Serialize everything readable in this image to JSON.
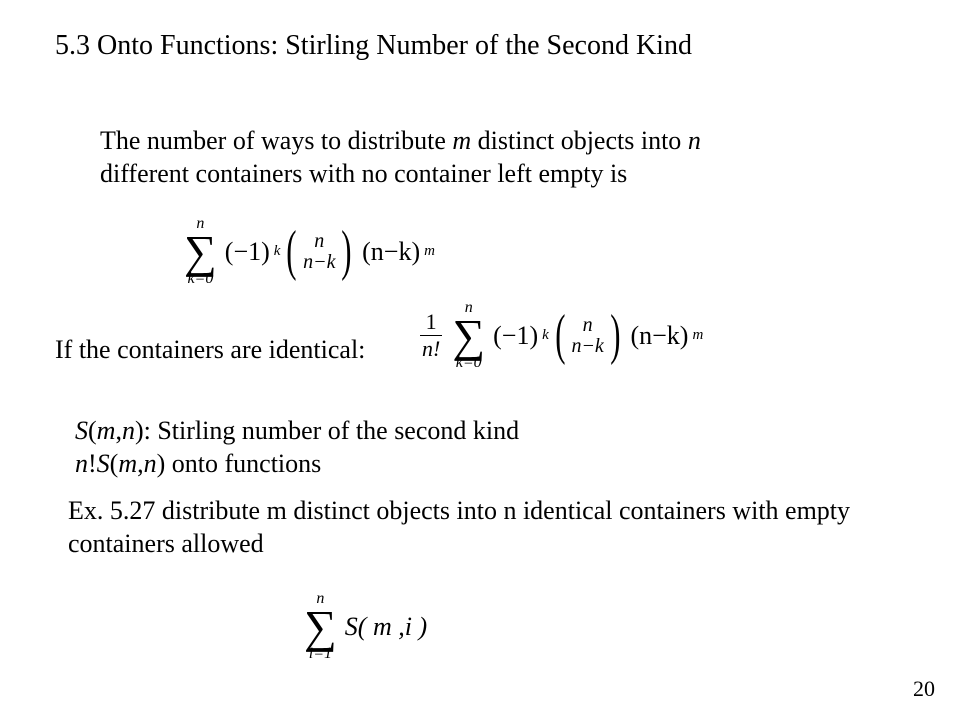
{
  "page": {
    "number": "20",
    "background": "#ffffff",
    "text_color": "#000000",
    "font_family": "Times New Roman",
    "base_fontsize_pt": 20
  },
  "heading": "5.3 Onto Functions: Stirling Number of the Second Kind",
  "para1_a": "The number of ways to distribute ",
  "para1_m": "m",
  "para1_b": " distinct objects into ",
  "para1_n": "n",
  "para1_c": "different containers with no container left empty is",
  "formula1": {
    "sum_upper": "n",
    "sum_lower": "k=0",
    "neg1": "(−1)",
    "exp_k": "k",
    "binom_top": "n",
    "binom_bot": "n−k",
    "tail_base": "(n−k)",
    "tail_exp": "m"
  },
  "para2": "If the containers are identical:",
  "formula2": {
    "frac_num": "1",
    "frac_den": "n!",
    "sum_upper": "n",
    "sum_lower": "k=0",
    "neg1": "(−1)",
    "exp_k": "k",
    "binom_top": "n",
    "binom_bot": "n−k",
    "tail_base": "(n−k)",
    "tail_exp": "m"
  },
  "para3_a": "S",
  "para3_b": "(",
  "para3_c": "m",
  "para3_d": ",",
  "para3_e": "n",
  "para3_f": "): Stirling number of the second kind",
  "para3_g": "n",
  "para3_h": "!",
  "para3_i": "S",
  "para3_j": "(",
  "para3_k": "m",
  "para3_l": ",",
  "para3_m": "n",
  "para3_n": ") onto functions",
  "para4": "Ex. 5.27 distribute m distinct objects into n identical containers with empty containers allowed",
  "formula3": {
    "sum_upper": "n",
    "sum_lower": "i=1",
    "body": "S( m ,i )"
  }
}
